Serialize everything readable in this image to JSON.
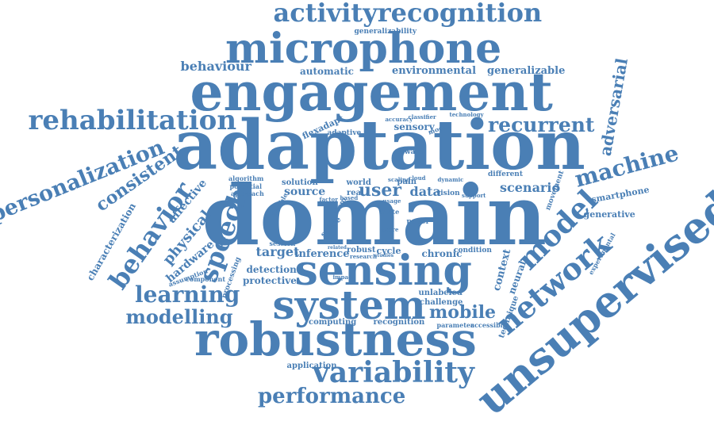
{
  "accent_color": "#4a7fb5",
  "background_color": "#ffffff",
  "words": [
    {
      "id": "domain",
      "text": "domain"
    },
    {
      "id": "adaptation",
      "text": "adaptation"
    },
    {
      "id": "engagement",
      "text": "engagement"
    },
    {
      "id": "microphone",
      "text": "microphone"
    },
    {
      "id": "robustness",
      "text": "robustness"
    },
    {
      "id": "sensing",
      "text": "sensing"
    },
    {
      "id": "unsupervised",
      "text": "unsupervised"
    },
    {
      "id": "system",
      "text": "system"
    },
    {
      "id": "activityrecognition",
      "text": "activityrecognition"
    },
    {
      "id": "rehabilitation",
      "text": "rehabilitation"
    },
    {
      "id": "network",
      "text": "network"
    },
    {
      "id": "model",
      "text": "model"
    },
    {
      "id": "variability",
      "text": "variability"
    },
    {
      "id": "personalization",
      "text": "personalization"
    },
    {
      "id": "behavior",
      "text": "behavior"
    },
    {
      "id": "speech",
      "text": "speech"
    },
    {
      "id": "machine",
      "text": "machine"
    },
    {
      "id": "recurrent",
      "text": "recurrent"
    },
    {
      "id": "learning",
      "text": "learning"
    },
    {
      "id": "performance",
      "text": "performance"
    },
    {
      "id": "modelling",
      "text": "modelling"
    },
    {
      "id": "consistent",
      "text": "consistent"
    },
    {
      "id": "adversarial",
      "text": "adversarial"
    },
    {
      "id": "mobile",
      "text": "mobile"
    },
    {
      "id": "scenario",
      "text": "scenario"
    },
    {
      "id": "user",
      "text": "user"
    },
    {
      "id": "data",
      "text": "data"
    },
    {
      "id": "behaviour",
      "text": "behaviour"
    },
    {
      "id": "physical",
      "text": "physical"
    },
    {
      "id": "affective",
      "text": "affective"
    },
    {
      "id": "hardware",
      "text": "hardware"
    },
    {
      "id": "generalizable",
      "text": "generalizable"
    },
    {
      "id": "environmental",
      "text": "environmental"
    },
    {
      "id": "automatic",
      "text": "automatic"
    },
    {
      "id": "characterization",
      "text": "characterization"
    },
    {
      "id": "source",
      "text": "source"
    },
    {
      "id": "target",
      "text": "target"
    },
    {
      "id": "inference",
      "text": "inference"
    },
    {
      "id": "detection",
      "text": "detection"
    },
    {
      "id": "protective",
      "text": "protective"
    },
    {
      "id": "context",
      "text": "context"
    },
    {
      "id": "neural",
      "text": "neural"
    },
    {
      "id": "smartphone",
      "text": "smartphone"
    },
    {
      "id": "generative",
      "text": "generative"
    },
    {
      "id": "chronic",
      "text": "chronic"
    },
    {
      "id": "sensory",
      "text": "sensory"
    },
    {
      "id": "flexadapt",
      "text": "flexadapt"
    },
    {
      "id": "solution",
      "text": "solution"
    },
    {
      "id": "world",
      "text": "world"
    },
    {
      "id": "real",
      "text": "real"
    },
    {
      "id": "pain",
      "text": "pain"
    },
    {
      "id": "robust",
      "text": "robust"
    },
    {
      "id": "cycle",
      "text": "cycle"
    },
    {
      "id": "unlabeled",
      "text": "unlabeled"
    },
    {
      "id": "challenge",
      "text": "challenge"
    },
    {
      "id": "recognition",
      "text": "recognition"
    },
    {
      "id": "computing",
      "text": "computing"
    },
    {
      "id": "application",
      "text": "application"
    },
    {
      "id": "technique",
      "text": "technique"
    },
    {
      "id": "generalizability",
      "text": "generalizability"
    },
    {
      "id": "adaptive",
      "text": "adaptive"
    },
    {
      "id": "aware",
      "text": "aware"
    },
    {
      "id": "different",
      "text": "different"
    },
    {
      "id": "movement",
      "text": "movement"
    },
    {
      "id": "experimental",
      "text": "experimental"
    },
    {
      "id": "assumption",
      "text": "assumption"
    },
    {
      "id": "component",
      "text": "component"
    },
    {
      "id": "processing",
      "text": "processing"
    },
    {
      "id": "session",
      "text": "session"
    },
    {
      "id": "algorithm",
      "text": "algorithm"
    },
    {
      "id": "potential",
      "text": "potential"
    },
    {
      "id": "approach",
      "text": "approach"
    },
    {
      "id": "condition",
      "text": "condition"
    },
    {
      "id": "vision",
      "text": "vision"
    },
    {
      "id": "paper",
      "text": "paper"
    },
    {
      "id": "state",
      "text": "state"
    },
    {
      "id": "impact",
      "text": "impact"
    },
    {
      "id": "parameter",
      "text": "parameter"
    },
    {
      "id": "accessible",
      "text": "accessible"
    },
    {
      "id": "research",
      "text": "research"
    },
    {
      "id": "space",
      "text": "space"
    },
    {
      "id": "problem",
      "text": "problem"
    },
    {
      "id": "flexible",
      "text": "flexible"
    },
    {
      "id": "factor",
      "text": "factor"
    },
    {
      "id": "accuracy",
      "text": "accuracy"
    },
    {
      "id": "classifier",
      "text": "classifier"
    },
    {
      "id": "technology",
      "text": "technology"
    },
    {
      "id": "scaling",
      "text": "scaling"
    },
    {
      "id": "cloud",
      "text": "cloud"
    },
    {
      "id": "dynamic",
      "text": "dynamic"
    },
    {
      "id": "mocap",
      "text": "mocap"
    },
    {
      "id": "support",
      "text": "support"
    },
    {
      "id": "based",
      "text": "based"
    },
    {
      "id": "usage",
      "text": "usage"
    },
    {
      "id": "score",
      "text": "score"
    },
    {
      "id": "studies",
      "text": "studies"
    },
    {
      "id": "related",
      "text": "related"
    }
  ]
}
